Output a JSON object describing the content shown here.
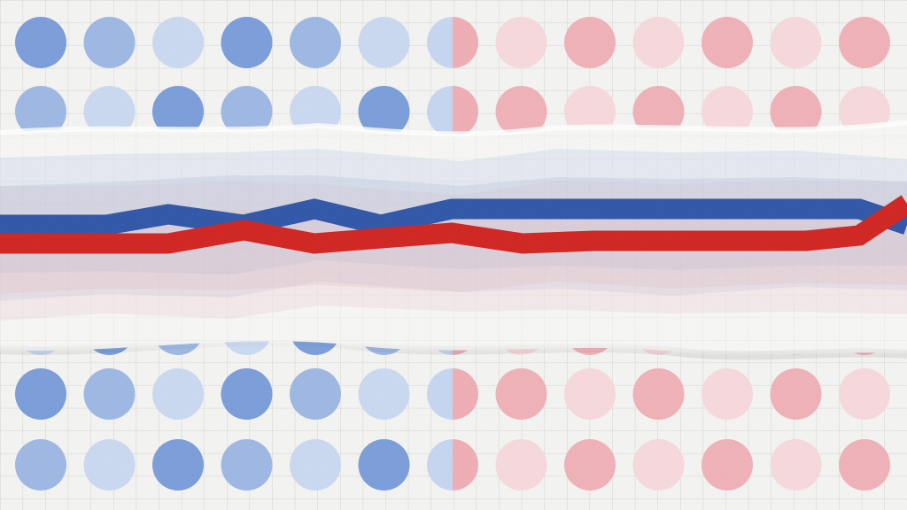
{
  "palette": {
    "paper": "#f4f4f2",
    "grid": "#d4d4d4",
    "dot_blue_strong": "#6f95d8",
    "dot_blue_mid": "#95b2e3",
    "dot_blue_light": "#c6d6f1",
    "dot_red_strong": "#efadb4",
    "dot_red_light": "#f7d7da",
    "line_blue": "#2f55a8",
    "line_red": "#d1231f",
    "band_blue": "#a9b9da",
    "band_red": "#e6b9c1",
    "strip": "#f7f7f6"
  },
  "illustration": {
    "dot_grid": {
      "columns": 13,
      "rows": 5,
      "left_half": "blue",
      "right_half": "red"
    },
    "lines": {
      "blue_series": [
        0.52,
        0.52,
        0.56,
        0.52,
        0.58,
        0.52,
        0.58,
        0.58,
        0.58,
        0.58,
        0.58,
        0.58,
        0.58,
        0.52
      ],
      "red_series": [
        0.45,
        0.45,
        0.45,
        0.5,
        0.45,
        0.47,
        0.49,
        0.45,
        0.46,
        0.46,
        0.46,
        0.46,
        0.48,
        0.6
      ]
    }
  }
}
